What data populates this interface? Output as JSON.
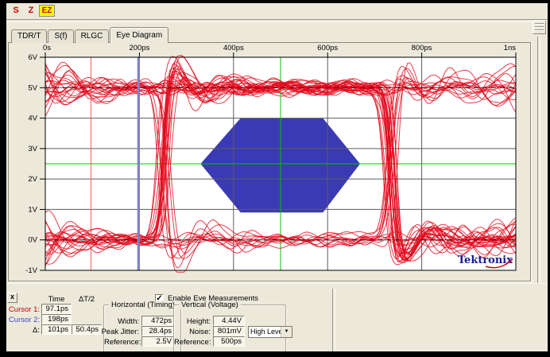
{
  "toolbar": {
    "buttons": [
      {
        "label": "S"
      },
      {
        "label": "Z"
      },
      {
        "label": "EZ"
      }
    ]
  },
  "tabs": [
    {
      "label": "TDR/T",
      "active": false
    },
    {
      "label": "S(f)",
      "active": false
    },
    {
      "label": "RLGC",
      "active": false
    },
    {
      "label": "Eye Diagram",
      "active": true
    }
  ],
  "plot": {
    "watermark": "Tektronix",
    "colors": {
      "trace": "#e30518",
      "mask": "#3a3ab4",
      "reference": "#00c400",
      "cursor1": "#f95f5f",
      "cursor2": "#8181cd",
      "grid": "#5c5c5c",
      "frame": "#000000",
      "watermark": "#1b1b8f",
      "swoosh": "#d40000"
    }
  },
  "chart_data": {
    "type": "line",
    "title": "Eye Diagram",
    "x_ticks": [
      {
        "label": "0s",
        "ps": 0
      },
      {
        "label": "200ps",
        "ps": 200
      },
      {
        "label": "400ps",
        "ps": 400
      },
      {
        "label": "600ps",
        "ps": 600
      },
      {
        "label": "800ps",
        "ps": 800
      },
      {
        "label": "1ns",
        "ps": 1000
      }
    ],
    "y_ticks": [
      {
        "label": "6V",
        "v": 6
      },
      {
        "label": "5V",
        "v": 5
      },
      {
        "label": "4V",
        "v": 4
      },
      {
        "label": "3V",
        "v": 3
      },
      {
        "label": "2V",
        "v": 2
      },
      {
        "label": "1V",
        "v": 1
      },
      {
        "label": "0V",
        "v": 0
      },
      {
        "label": "-1V",
        "v": -1
      }
    ],
    "xlim_ps": [
      0,
      1000
    ],
    "ylim_v": [
      -1,
      6
    ],
    "grid": true,
    "high_level_v": 5.0,
    "low_level_v": 0.0,
    "crossings_ps": [
      251,
      735
    ],
    "trace_count": 42,
    "mask_polygon_ps_v": [
      [
        330,
        2.5
      ],
      [
        415,
        4.0
      ],
      [
        590,
        4.0
      ],
      [
        669,
        2.5
      ],
      [
        590,
        0.9
      ],
      [
        415,
        0.9
      ]
    ],
    "reference_lines": {
      "horizontal_v": 2.5,
      "vertical_ps": 500
    },
    "cursors_ps": {
      "cursor1": 97.1,
      "cursor2": 198
    }
  },
  "measurements": {
    "close_label": "x",
    "col_time": "Time",
    "col_dt2": "ΔT/2",
    "cursor1_label": "Cursor 1:",
    "cursor1_value": "97.1ps",
    "cursor2_label": "Cursor 2:",
    "cursor2_value": "198ps",
    "delta_label": "Δ:",
    "delta_value": "101ps",
    "delta_t2_value": "50.4ps",
    "enable_label": "Enable Eye Measurements",
    "enable_checked": "✓",
    "horizontal": {
      "title": "Horizontal (Timing)",
      "rows": [
        {
          "label": "Width:",
          "value": "472ps"
        },
        {
          "label": "Peak Jitter:",
          "value": "28.4ps"
        },
        {
          "label": "Reference:",
          "value": "2.5V"
        }
      ]
    },
    "vertical": {
      "title": "Vertical (Voltage)",
      "rows": [
        {
          "label": "Height:",
          "value": "4.44V"
        },
        {
          "label": "Noise:",
          "value": "801mV"
        },
        {
          "label": "Reference:",
          "value": "500ps"
        }
      ],
      "noise_mode": "High Level",
      "dropdown_arrow": "▼"
    }
  }
}
